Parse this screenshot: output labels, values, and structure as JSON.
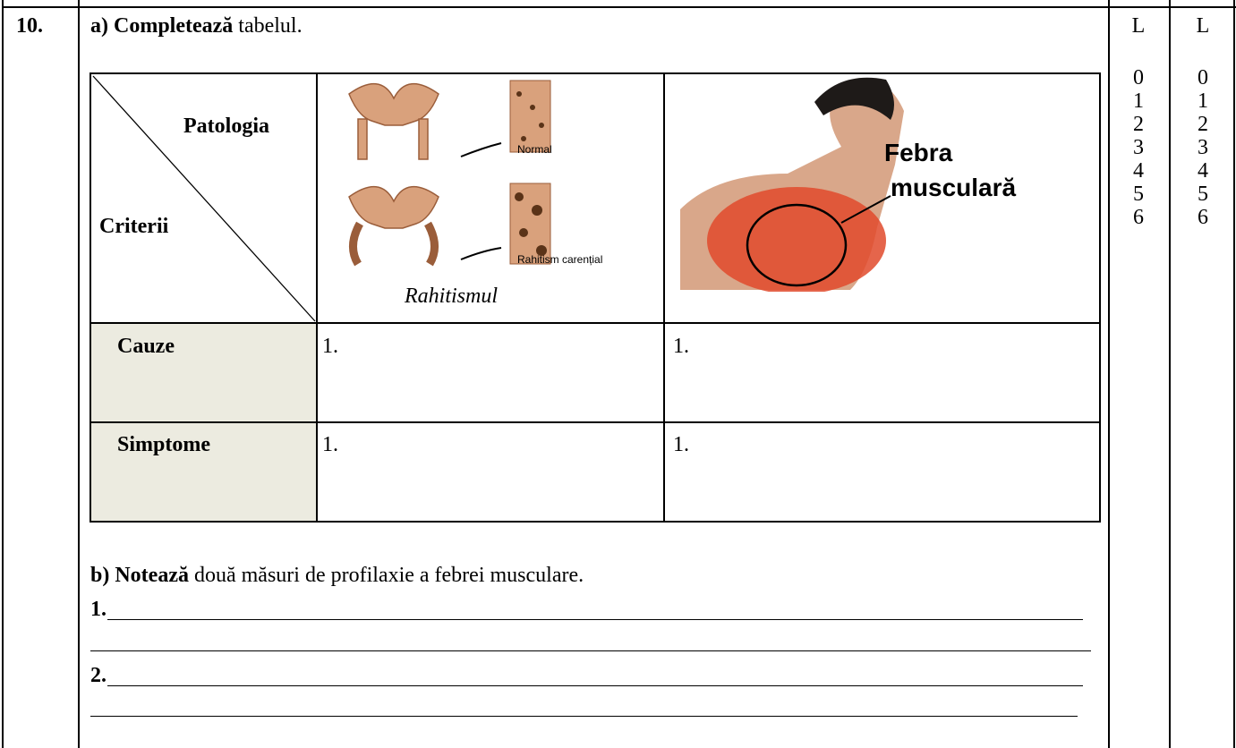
{
  "item": {
    "number": "10."
  },
  "part_a": {
    "label": "a) Completează",
    "text": "tabelul."
  },
  "table": {
    "corner": {
      "top": "Patologia",
      "bottom": "Criterii"
    },
    "col1": {
      "caption_normal": "Normal",
      "caption_rickets": "Rahitism carențial",
      "name": "Rahitismul"
    },
    "col2": {
      "name_line1": "Febra",
      "name_line2": "musculară"
    },
    "rows": [
      [
        "Cauze",
        "1.",
        "1."
      ],
      [
        "Simptome",
        "1.",
        "1."
      ]
    ]
  },
  "part_b": {
    "label": "b) Notează",
    "text": "două măsuri de profilaxie a febrei musculare.",
    "answers": [
      "1.",
      "2."
    ]
  },
  "score_columns": [
    {
      "header": "L",
      "scores": [
        0,
        1,
        2,
        3,
        4,
        5,
        6
      ]
    },
    {
      "header": "L",
      "scores": [
        0,
        1,
        2,
        3,
        4,
        5,
        6
      ]
    }
  ]
}
